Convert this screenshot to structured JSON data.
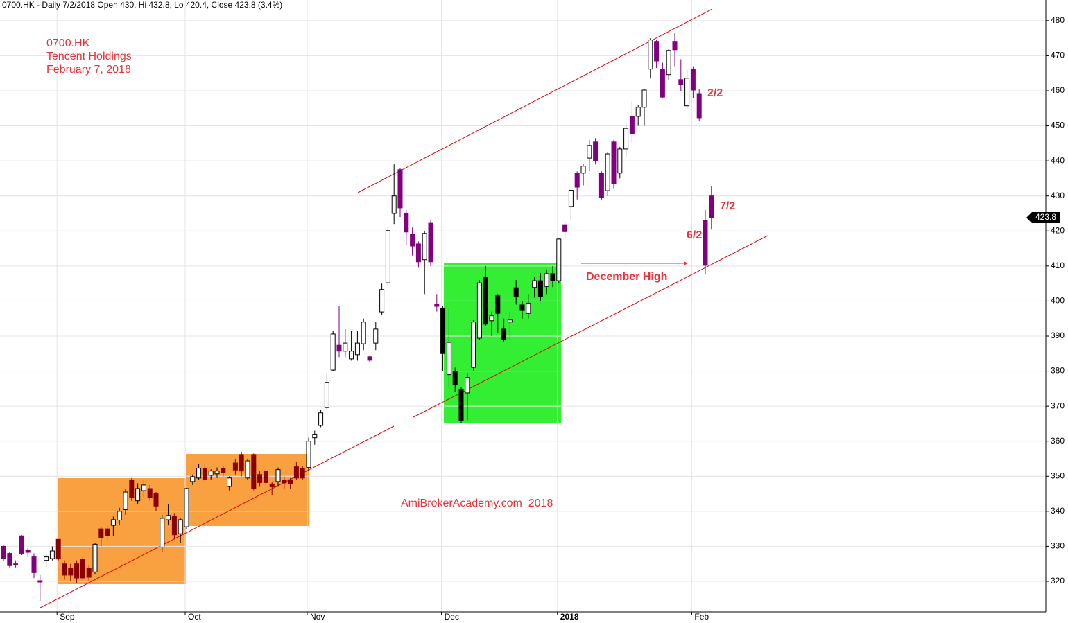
{
  "chart_data": {
    "type": "candlestick",
    "title": "0700.HK - Daily 7/2/2018 Open 430, Hi 432.8, Lo 420.4, Close 423.8 (3.4%)",
    "subtitle": [
      "0700.HK",
      "Tencent Holdings",
      "February 7, 2018"
    ],
    "annotations": [
      "2/2",
      "6/2",
      "7/2",
      "December High",
      "AmiBrokerAcademy.com  2018"
    ],
    "categories": [
      null,
      null,
      null,
      null,
      null,
      null,
      null,
      null,
      null,
      "Sep",
      null,
      null,
      null,
      null,
      null,
      null,
      null,
      null,
      null,
      null,
      null,
      null,
      null,
      null,
      null,
      null,
      null,
      null,
      null,
      null,
      "Oct",
      null,
      null,
      null,
      null,
      null,
      null,
      null,
      null,
      null,
      null,
      null,
      null,
      null,
      null,
      null,
      null,
      null,
      null,
      null,
      "Nov",
      null,
      null,
      null,
      null,
      null,
      null,
      null,
      null,
      null,
      null,
      null,
      null,
      null,
      null,
      null,
      null,
      null,
      null,
      null,
      null,
      null,
      "Dec",
      null,
      null,
      null,
      null,
      null,
      null,
      null,
      null,
      null,
      null,
      null,
      null,
      null,
      null,
      null,
      null,
      null,
      null,
      "2018",
      null,
      null,
      null,
      null,
      null,
      null,
      null,
      null,
      null,
      null,
      null,
      null,
      null,
      null,
      null,
      null,
      null,
      null,
      null,
      null,
      null,
      "Feb",
      null,
      null,
      null
    ],
    "open": [
      330,
      328,
      325,
      333,
      328.8,
      327,
      320.2,
      326,
      326.5,
      332,
      325,
      323.8,
      325,
      326.4,
      323.8,
      322.7,
      335,
      335,
      336,
      337.5,
      340.5,
      348.9,
      343,
      345.9,
      346.5,
      345,
      329.8,
      337.6,
      338.6,
      333.6,
      335.6,
      348.5,
      349.5,
      352.3,
      350.3,
      350.7,
      352.3,
      347.1,
      353.8,
      356.2,
      349.5,
      356.2,
      350.5,
      351.5,
      347.8,
      348.5,
      348.9,
      349,
      352.7,
      352.3,
      352.5,
      361,
      364.5,
      369.6,
      380.3,
      387.4,
      385.7,
      383.5,
      384.7,
      387.8,
      384.1,
      388,
      396.9,
      405.2,
      425,
      437.5,
      425,
      419.1,
      416.3,
      411.8,
      422.2,
      399,
      398,
      379,
      380,
      374.8,
      373.8,
      381.1,
      389.4,
      406.8,
      394.4,
      401.5,
      392,
      394,
      403.8,
      398.9,
      396.5,
      403.9,
      405.8,
      404.2,
      407.8,
      405.8,
      421.8,
      427,
      436.5,
      436.5,
      440.8,
      445.4,
      436.5,
      431.5,
      445.4,
      436.5,
      443.4,
      452.7,
      452.7,
      455.3,
      466.2,
      474.1,
      466.2,
      464.6,
      474.1,
      463.2,
      455.7,
      466.2,
      459.2,
      423,
      430
    ],
    "high": [
      330.3,
      328.5,
      326,
      333.2,
      329.5,
      328,
      321.8,
      328,
      330,
      332,
      326,
      325,
      326,
      327,
      324.5,
      331,
      335.5,
      336,
      338.5,
      341,
      346.5,
      349.5,
      348,
      349,
      347.5,
      345.5,
      339,
      342,
      339.5,
      338,
      346.7,
      350.5,
      353.5,
      353.5,
      352,
      352.5,
      352.8,
      350,
      355,
      357,
      355,
      356.5,
      351.5,
      352,
      348.5,
      352.5,
      350,
      349.5,
      354,
      353,
      361,
      363,
      369,
      379.5,
      391.5,
      398.7,
      392,
      391.5,
      391.5,
      395,
      384.5,
      394,
      405,
      420.5,
      439,
      438,
      426,
      421,
      417,
      420,
      423,
      402,
      398.5,
      398,
      381,
      375.5,
      379.5,
      394.5,
      406,
      410,
      397,
      402,
      395,
      397,
      406,
      400,
      402,
      407,
      408,
      409,
      410,
      418,
      422.5,
      432,
      437,
      439,
      446,
      446.5,
      437,
      442.5,
      446,
      444,
      451,
      457,
      456,
      460.5,
      475,
      474.5,
      468,
      472,
      476.5,
      469,
      466,
      467,
      460.5,
      426,
      432.8
    ],
    "low": [
      325.7,
      324,
      324,
      327.5,
      327,
      321,
      314.5,
      324,
      326,
      326,
      320.5,
      320,
      319.5,
      320,
      320,
      322,
      330,
      331.5,
      333,
      336,
      339,
      343,
      342,
      344,
      343,
      340,
      328.5,
      336,
      332,
      331,
      335,
      347.5,
      349,
      348.5,
      349,
      349.5,
      350,
      346,
      350.5,
      350,
      349,
      346,
      347,
      347,
      344.5,
      347,
      346.5,
      346.5,
      349,
      349,
      351.5,
      359,
      364,
      369,
      380,
      384,
      384,
      383,
      383,
      386,
      382.5,
      386,
      396,
      404.5,
      422,
      424,
      416,
      413,
      409.5,
      402,
      410,
      397,
      380,
      375.5,
      374,
      365.2,
      366,
      380,
      389,
      393,
      390,
      391,
      388.5,
      389,
      399,
      395,
      395,
      401,
      400,
      402,
      404,
      405,
      418,
      423,
      429,
      433,
      437,
      439,
      429,
      430,
      432,
      435,
      441,
      445,
      450,
      450,
      463.5,
      466.5,
      458,
      463,
      467,
      460,
      455,
      458,
      451.3,
      407.6,
      420.4
    ],
    "close": [
      326.5,
      324.5,
      324.8,
      327.8,
      328.3,
      322.5,
      319.8,
      327,
      328.7,
      326.4,
      321.8,
      321.8,
      321,
      321,
      321.2,
      330.6,
      332.5,
      333,
      337.6,
      340,
      345.5,
      344,
      346.5,
      347.5,
      344,
      341.5,
      338,
      338.8,
      333.3,
      337.6,
      346.5,
      349.9,
      352.3,
      349.1,
      351.5,
      351.5,
      351.1,
      349.5,
      351.8,
      351.5,
      354.4,
      346.5,
      348.2,
      348.2,
      347,
      351.9,
      348.1,
      347.8,
      349.5,
      349.5,
      360,
      362,
      368.1,
      376.8,
      390.6,
      385.7,
      388,
      385.7,
      388,
      394,
      383.1,
      392,
      403.3,
      420.1,
      430,
      426.6,
      419.7,
      415.7,
      411.2,
      419.3,
      411.2,
      398.5,
      385,
      388.2,
      376.2,
      365.9,
      378.2,
      394,
      405.2,
      393.4,
      395.8,
      396.5,
      389,
      394.6,
      401.3,
      397.3,
      399.4,
      405.8,
      401.3,
      407.8,
      405.8,
      417.7,
      419.8,
      431.6,
      432.5,
      438.5,
      444.4,
      440,
      429.6,
      442,
      433.5,
      443.4,
      449.3,
      447.7,
      455.3,
      460.2,
      474.5,
      468.5,
      458.2,
      471.5,
      471.7,
      461.8,
      463.6,
      460.2,
      452.3,
      410.2,
      423.8
    ],
    "colors": [
      "#800080",
      "#800080",
      "#800080",
      "#800080",
      "#800080",
      "#800080",
      "#800080",
      "#ffffff",
      "#ffffff",
      "#8b0000",
      "#8b0000",
      "#8b0000",
      "#8b0000",
      "#8b0000",
      "#8b0000",
      "#ffffff",
      "#8b0000",
      "#8b0000",
      "#ffffff",
      "#ffffff",
      "#ffffff",
      "#8b0000",
      "#ffffff",
      "#ffffff",
      "#8b0000",
      "#8b0000",
      "#ffffff",
      "#ffffff",
      "#8b0000",
      "#ffffff",
      "#ffffff",
      "#ffffff",
      "#ffffff",
      "#8b0000",
      "#ffffff",
      "#ffffff",
      "#8b0000",
      "#ffffff",
      "#8b0000",
      "#8b0000",
      "#ffffff",
      "#8b0000",
      "#8b0000",
      "#8b0000",
      "#8b0000",
      "#ffffff",
      "#8b0000",
      "#8b0000",
      "#8b0000",
      "#8b0000",
      "#ffffff",
      "#ffffff",
      "#ffffff",
      "#ffffff",
      "#ffffff",
      "#800080",
      "#ffffff",
      "#ffffff",
      "#ffffff",
      "#ffffff",
      "#800080",
      "#ffffff",
      "#ffffff",
      "#ffffff",
      "#ffffff",
      "#800080",
      "#800080",
      "#800080",
      "#800080",
      "#ffffff",
      "#800080",
      "#800080",
      "#000000",
      "#ffffff",
      "#000000",
      "#000000",
      "#ffffff",
      "#ffffff",
      "#ffffff",
      "#000000",
      "#ffffff",
      "#000000",
      "#000000",
      "#ffffff",
      "#000000",
      "#000000",
      "#ffffff",
      "#ffffff",
      "#000000",
      "#ffffff",
      "#000000",
      "#ffffff",
      "#800080",
      "#ffffff",
      "#800080",
      "#ffffff",
      "#ffffff",
      "#800080",
      "#800080",
      "#ffffff",
      "#800080",
      "#ffffff",
      "#ffffff",
      "#800080",
      "#ffffff",
      "#ffffff",
      "#ffffff",
      "#800080",
      "#800080",
      "#ffffff",
      "#800080",
      "#800080",
      "#ffffff",
      "#800080",
      "#800080",
      "#800080",
      "#800080"
    ],
    "ylim": [
      311.3,
      485.9
    ],
    "yticks": [
      320,
      330,
      340,
      350,
      360,
      370,
      380,
      390,
      400,
      410,
      420,
      430,
      440,
      450,
      460,
      470,
      480
    ],
    "grid": true
  }
}
